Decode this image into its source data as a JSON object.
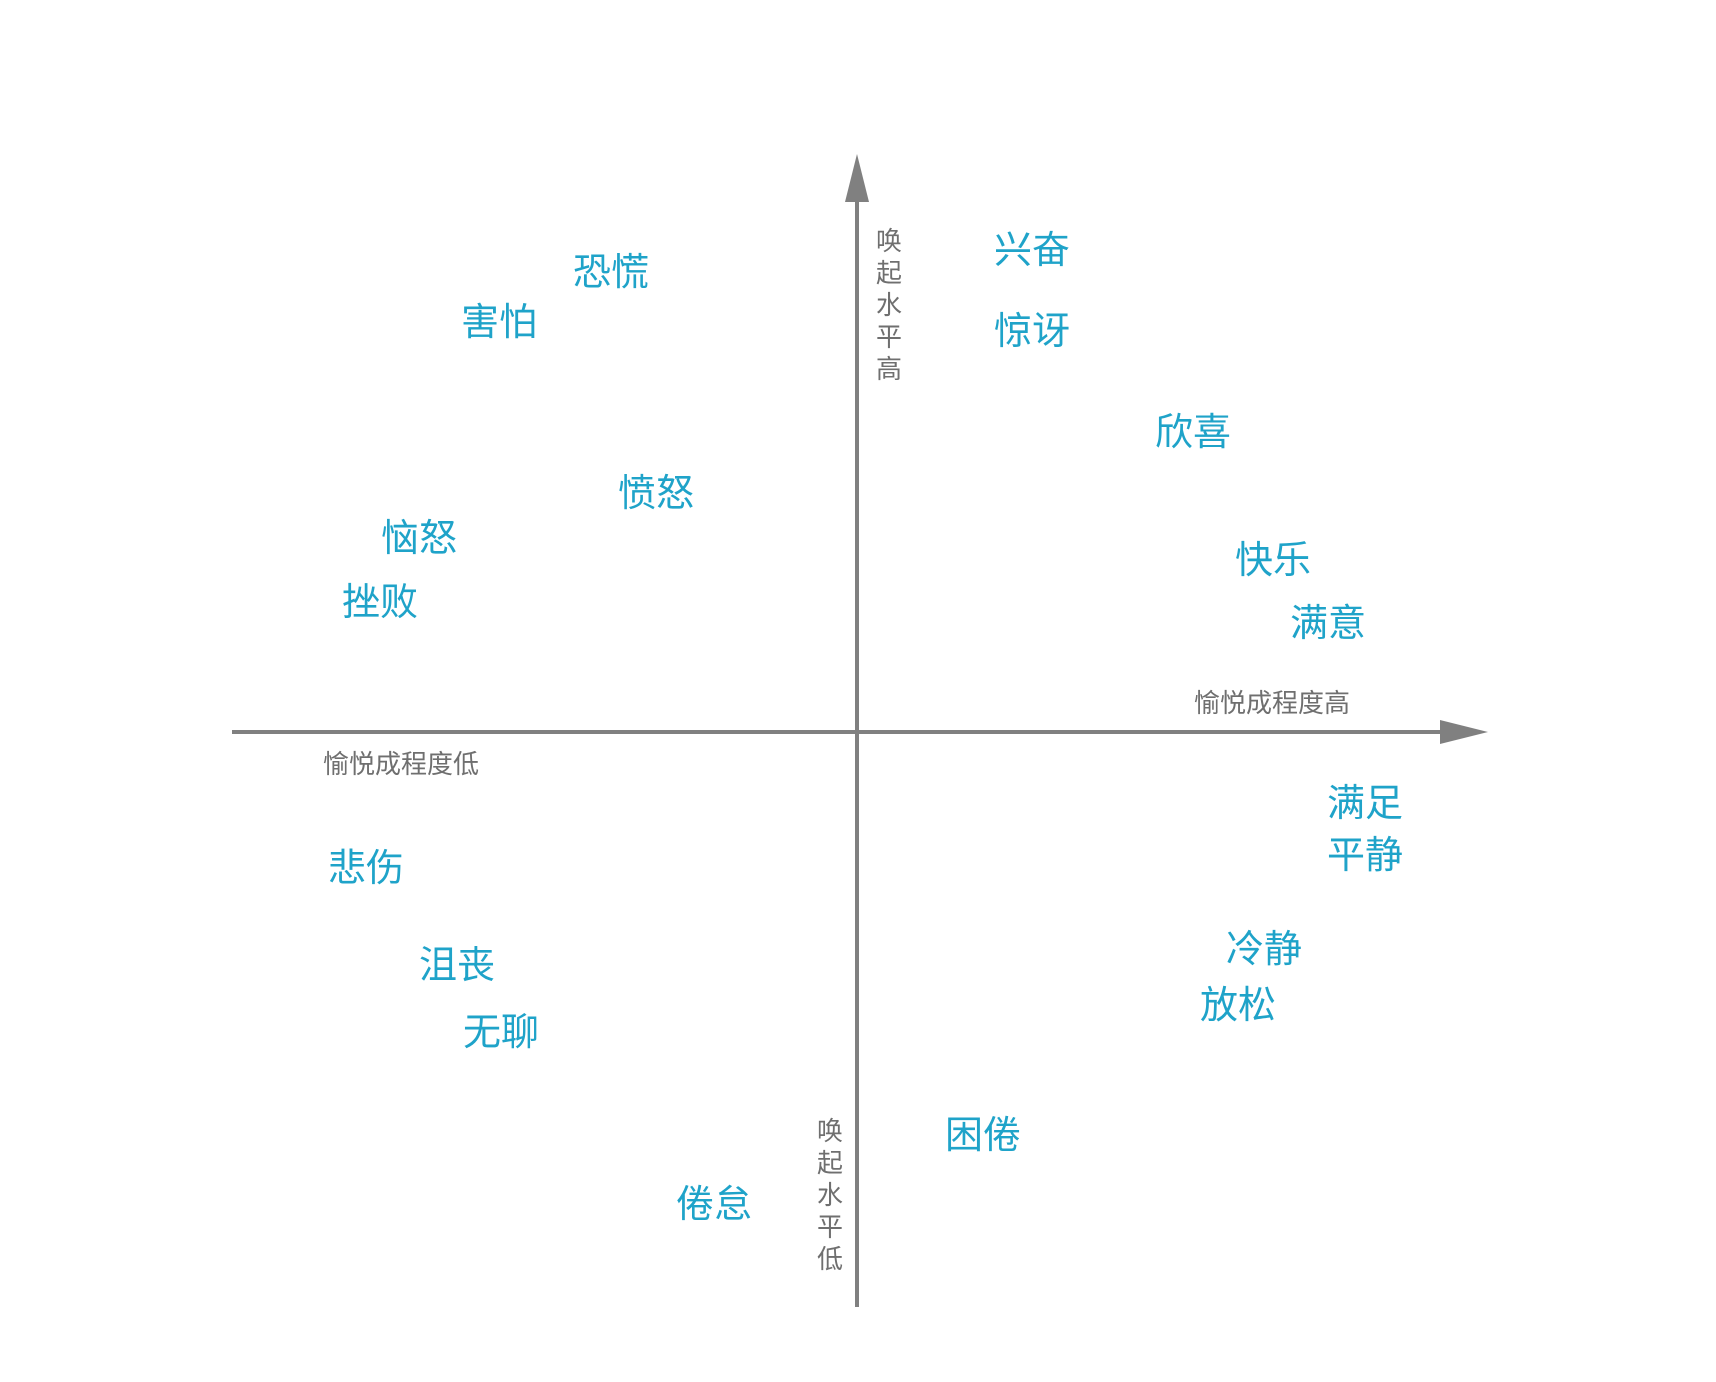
{
  "colors": {
    "axis": "#808080",
    "axis_label": "#6f6f6f",
    "emotion": "#1fa3c9",
    "background": "#ffffff"
  },
  "axes": {
    "arousal_high": "唤起水平高",
    "arousal_low": "唤起水平低",
    "pleasure_high": "愉悦成程度高",
    "pleasure_low": "愉悦成程度低"
  },
  "emotions": [
    {
      "id": "excited",
      "label": "兴奋"
    },
    {
      "id": "surprised",
      "label": "惊讶"
    },
    {
      "id": "delighted",
      "label": "欣喜"
    },
    {
      "id": "happy",
      "label": "快乐"
    },
    {
      "id": "pleased",
      "label": "满意"
    },
    {
      "id": "panic",
      "label": "恐慌"
    },
    {
      "id": "afraid",
      "label": "害怕"
    },
    {
      "id": "angry",
      "label": "愤怒"
    },
    {
      "id": "annoyed",
      "label": "恼怒"
    },
    {
      "id": "frustrated",
      "label": "挫败"
    },
    {
      "id": "content",
      "label": "满足"
    },
    {
      "id": "serene",
      "label": "平静"
    },
    {
      "id": "calm",
      "label": "冷静"
    },
    {
      "id": "relaxed",
      "label": "放松"
    },
    {
      "id": "sleepy",
      "label": "困倦"
    },
    {
      "id": "sad",
      "label": "悲伤"
    },
    {
      "id": "depressed",
      "label": "沮丧"
    },
    {
      "id": "bored",
      "label": "无聊"
    },
    {
      "id": "tired",
      "label": "倦怠"
    }
  ]
}
